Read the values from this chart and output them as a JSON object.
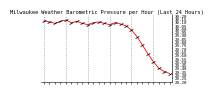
{
  "title": "Milwaukee Weather Barometric Pressure per Hour (Last 24 Hours)",
  "pressure_values": [
    30.12,
    30.1,
    30.08,
    30.11,
    30.13,
    30.09,
    30.11,
    30.08,
    30.06,
    30.09,
    30.1,
    30.08,
    30.06,
    30.09,
    30.07,
    30.04,
    29.98,
    29.88,
    29.75,
    29.62,
    29.5,
    29.4,
    29.35,
    29.32
  ],
  "line_color": "#ff0000",
  "marker_color": "#000000",
  "grid_color": "#888888",
  "bg_color": "#ffffff",
  "ymin": 29.2,
  "ymax": 30.2,
  "title_fontsize": 3.8,
  "tick_fontsize": 3.0,
  "num_hours": 24,
  "grid_interval": 4
}
